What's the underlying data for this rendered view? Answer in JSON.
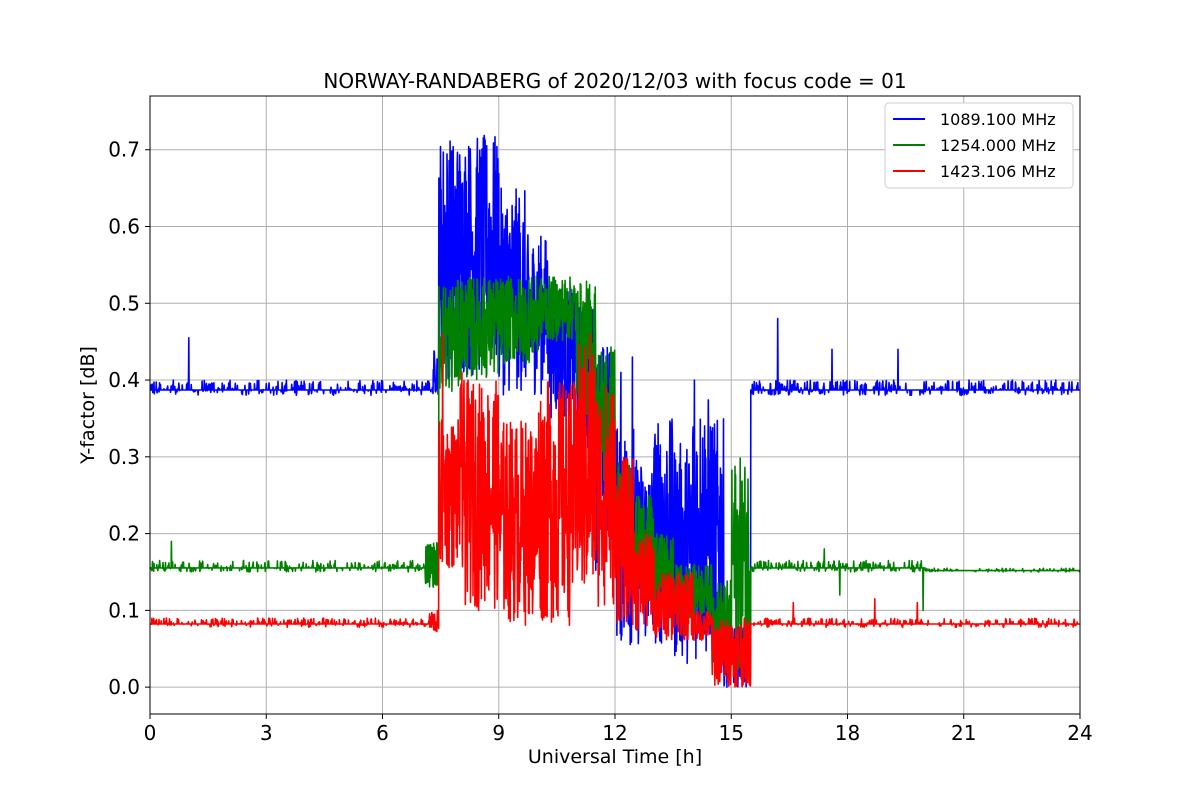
{
  "chart_data": {
    "type": "line",
    "title": "NORWAY-RANDABERG of 2020/12/03 with focus code = 01",
    "xlabel": "Universal Time [h]",
    "ylabel": "Y-factor [dB]",
    "xlim": [
      0,
      24
    ],
    "ylim": [
      -0.035,
      0.77
    ],
    "xticks": [
      0,
      3,
      6,
      9,
      12,
      15,
      18,
      21,
      24
    ],
    "xtick_labels": [
      "0",
      "3",
      "6",
      "9",
      "12",
      "15",
      "18",
      "21",
      "24"
    ],
    "yticks": [
      0.0,
      0.1,
      0.2,
      0.3,
      0.4,
      0.5,
      0.6,
      0.7
    ],
    "ytick_labels": [
      "0.0",
      "0.1",
      "0.2",
      "0.3",
      "0.4",
      "0.5",
      "0.6",
      "0.7"
    ],
    "grid": true,
    "legend_position": "top-right",
    "series": [
      {
        "name": "1089.100 MHz",
        "color": "#0000ff",
        "profile": [
          [
            0,
            7.3,
            0.38,
            0.4
          ],
          [
            7.3,
            7.45,
            0.38,
            0.44
          ],
          [
            7.45,
            9.0,
            0.4,
            0.72
          ],
          [
            9.0,
            9.7,
            0.38,
            0.65
          ],
          [
            9.7,
            10.3,
            0.38,
            0.59
          ],
          [
            10.3,
            11.0,
            0.35,
            0.52
          ],
          [
            11.0,
            11.5,
            0.3,
            0.5
          ],
          [
            11.5,
            12.0,
            0.15,
            0.45
          ],
          [
            12.0,
            12.5,
            0.05,
            0.35
          ],
          [
            12.5,
            13.0,
            0.05,
            0.3
          ],
          [
            13.0,
            13.5,
            0.05,
            0.35
          ],
          [
            13.5,
            14.0,
            0.03,
            0.32
          ],
          [
            14.0,
            14.5,
            0.03,
            0.38
          ],
          [
            14.5,
            14.8,
            0.02,
            0.35
          ],
          [
            14.8,
            15.5,
            0.0,
            0.08
          ],
          [
            15.5,
            24,
            0.38,
            0.4
          ]
        ],
        "spikes": [
          [
            1.0,
            0.455
          ],
          [
            16.2,
            0.48
          ],
          [
            12.15,
            0.41
          ],
          [
            12.45,
            0.43
          ],
          [
            14.05,
            0.4
          ],
          [
            17.6,
            0.44
          ],
          [
            19.3,
            0.44
          ]
        ]
      },
      {
        "name": "1254.000 MHz",
        "color": "#008000",
        "profile": [
          [
            0,
            7.1,
            0.15,
            0.165
          ],
          [
            7.1,
            7.45,
            0.13,
            0.19
          ],
          [
            7.45,
            8.0,
            0.38,
            0.53
          ],
          [
            8.0,
            9.0,
            0.4,
            0.535
          ],
          [
            9.0,
            10.0,
            0.42,
            0.535
          ],
          [
            10.0,
            11.0,
            0.45,
            0.535
          ],
          [
            11.0,
            11.5,
            0.35,
            0.53
          ],
          [
            11.5,
            12.0,
            0.25,
            0.45
          ],
          [
            12.0,
            12.5,
            0.15,
            0.3
          ],
          [
            12.5,
            13.0,
            0.12,
            0.25
          ],
          [
            13.0,
            13.5,
            0.1,
            0.2
          ],
          [
            13.5,
            14.5,
            0.09,
            0.16
          ],
          [
            14.5,
            15.0,
            0.02,
            0.14
          ],
          [
            15.0,
            15.5,
            0.02,
            0.3
          ],
          [
            15.5,
            20.0,
            0.15,
            0.165
          ],
          [
            20.0,
            24,
            0.15,
            0.155
          ]
        ],
        "spikes": [
          [
            0.55,
            0.19
          ],
          [
            17.4,
            0.18
          ],
          [
            19.95,
            0.1
          ],
          [
            17.8,
            0.12
          ]
        ]
      },
      {
        "name": "1423.106 MHz",
        "color": "#ff0000",
        "profile": [
          [
            0,
            7.2,
            0.078,
            0.09
          ],
          [
            7.2,
            7.45,
            0.07,
            0.1
          ],
          [
            7.45,
            8.0,
            0.15,
            0.35
          ],
          [
            8.0,
            9.0,
            0.1,
            0.4
          ],
          [
            9.0,
            10.0,
            0.08,
            0.35
          ],
          [
            10.0,
            11.0,
            0.08,
            0.4
          ],
          [
            11.0,
            11.5,
            0.1,
            0.45
          ],
          [
            11.5,
            12.0,
            0.1,
            0.4
          ],
          [
            12.0,
            12.5,
            0.08,
            0.3
          ],
          [
            12.5,
            13.0,
            0.07,
            0.2
          ],
          [
            13.0,
            14.0,
            0.06,
            0.15
          ],
          [
            14.0,
            14.5,
            0.06,
            0.1
          ],
          [
            14.5,
            15.5,
            0.0,
            0.09
          ],
          [
            15.5,
            24,
            0.078,
            0.09
          ]
        ],
        "spikes": [
          [
            7.55,
            0.46
          ],
          [
            8.05,
            0.41
          ],
          [
            11.35,
            0.46
          ],
          [
            16.6,
            0.11
          ],
          [
            18.7,
            0.115
          ],
          [
            19.8,
            0.11
          ]
        ]
      }
    ]
  }
}
